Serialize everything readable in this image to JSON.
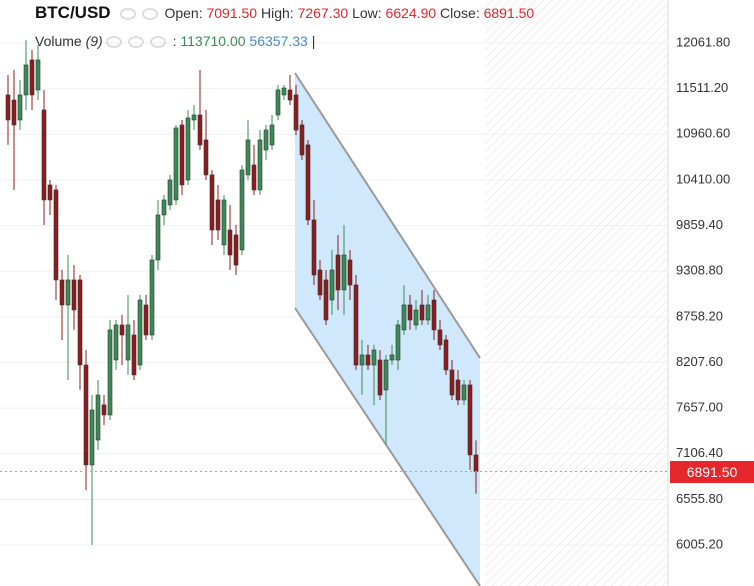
{
  "chart_data": {
    "type": "candlestick",
    "title": "BTC/USD",
    "open": [
      11435,
      11374,
      11133,
      11435,
      11857,
      11495,
      11254,
      10349,
      10289,
      9203,
      8901,
      9203,
      9203,
      8177,
      6971,
      7272,
      7695,
      7574,
      8237,
      8660,
      8237,
      8539,
      8177,
      8901,
      8539,
      9444,
      9987,
      10108,
      10168,
      11073,
      10409,
      11133,
      11193,
      10892,
      10470,
      10168,
      9625,
      9806,
      9746,
      9565,
      10470,
      10590,
      10289,
      10771,
      10832,
      11193,
      11435,
      11495,
      11435,
      11073,
      10832,
      9927,
      9323,
      9203,
      8961,
      9504,
      9082,
      9444,
      9142,
      8177,
      8298,
      8177,
      8237,
      7876,
      8237,
      8237,
      8600,
      8901,
      8660,
      8901,
      8720,
      8961,
      8600,
      8479,
      8117,
      7996,
      7755,
      7936,
      7091.5
    ],
    "high": [
      11676,
      11736,
      11616,
      12098,
      11978,
      12038,
      11495,
      10409,
      10349,
      9323,
      9504,
      9383,
      9263,
      8358,
      7815,
      7996,
      7815,
      8720,
      8720,
      8781,
      9022,
      8720,
      9022,
      9022,
      9504,
      10168,
      10228,
      10470,
      11073,
      11133,
      11254,
      11314,
      11736,
      11254,
      10530,
      10349,
      10228,
      10108,
      9866,
      10590,
      11133,
      10832,
      11012,
      11073,
      11193,
      11556,
      11556,
      11676,
      11556,
      11133,
      10892,
      10168,
      9444,
      9323,
      9565,
      9746,
      9866,
      9565,
      9263,
      8479,
      8419,
      8419,
      8358,
      8298,
      8419,
      8720,
      9142,
      9022,
      8961,
      9082,
      9022,
      9082,
      8720,
      8539,
      8237,
      8117,
      7996,
      7996,
      7267.3
    ],
    "low": [
      10832,
      10289,
      11012,
      11254,
      11254,
      11374,
      9866,
      9987,
      8961,
      8479,
      7996,
      8600,
      7876,
      6669,
      6005,
      7152,
      7453,
      7514,
      8117,
      8177,
      8057,
      7996,
      8117,
      8479,
      8479,
      9323,
      9866,
      10047,
      10108,
      10228,
      10349,
      11012,
      10771,
      10409,
      9625,
      9685,
      9504,
      9323,
      9263,
      9504,
      10409,
      10228,
      10228,
      10651,
      10771,
      11133,
      11374,
      11314,
      10952,
      10651,
      9866,
      9142,
      8961,
      8660,
      8781,
      8841,
      8781,
      8961,
      8117,
      7815,
      8117,
      7695,
      7755,
      7212,
      8177,
      8117,
      8539,
      8600,
      8600,
      8660,
      8660,
      8479,
      8358,
      8057,
      7755,
      7695,
      7695,
      6911,
      6624.9
    ],
    "close": [
      11133,
      11073,
      11435,
      11797,
      11435,
      11857,
      10168,
      10168,
      9203,
      8901,
      9203,
      8841,
      8177,
      6971,
      7634,
      7815,
      7574,
      8600,
      8660,
      8539,
      8660,
      8057,
      8961,
      8539,
      9444,
      9987,
      10168,
      10409,
      11037,
      10349,
      11157,
      11193,
      10832,
      10470,
      9806,
      9806,
      10168,
      9504,
      9383,
      10530,
      10892,
      10289,
      10892,
      11012,
      11073,
      11495,
      11519,
      11374,
      11012,
      10711,
      9927,
      9263,
      9022,
      8720,
      9323,
      9082,
      9504,
      9142,
      8177,
      8298,
      8177,
      8358,
      7815,
      8237,
      8298,
      8660,
      8901,
      8720,
      8841,
      8720,
      8901,
      8600,
      8419,
      8117,
      7815,
      7755,
      7936,
      7092,
      6891.5
    ],
    "up_color": "#3a8c55",
    "down_color": "#8e1c1c",
    "ylim": [
      5510.5,
      12580.6
    ],
    "yticks": [
      {
        "value": 12061.8,
        "label": "12061.80"
      },
      {
        "value": 11511.2,
        "label": "11511.20"
      },
      {
        "value": 10960.6,
        "label": "10960.60"
      },
      {
        "value": 10410,
        "label": "10410.00"
      },
      {
        "value": 9859.4,
        "label": "9859.40"
      },
      {
        "value": 9308.8,
        "label": "9308.80"
      },
      {
        "value": 8758.2,
        "label": "8758.20"
      },
      {
        "value": 8207.6,
        "label": "8207.60"
      },
      {
        "value": 7657,
        "label": "7657.00"
      },
      {
        "value": 7106.4,
        "label": "7106.40"
      },
      {
        "value": 6555.8,
        "label": "6555.80"
      },
      {
        "value": 6005.2,
        "label": "6005.20"
      }
    ],
    "grid": true
  },
  "header": {
    "open_label": "Open:",
    "open": "7091.50",
    "high_label": "High:",
    "high": "7267.30",
    "low_label": "Low:",
    "low": "6624.90",
    "close_label": "Close:",
    "close": "6891.50"
  },
  "volume_legend": {
    "label": "Volume",
    "period": "(9)",
    "separator": ":",
    "value": "113710.00",
    "average": "56357.33",
    "cursor": "|"
  },
  "last_price_label": "6891.50"
}
